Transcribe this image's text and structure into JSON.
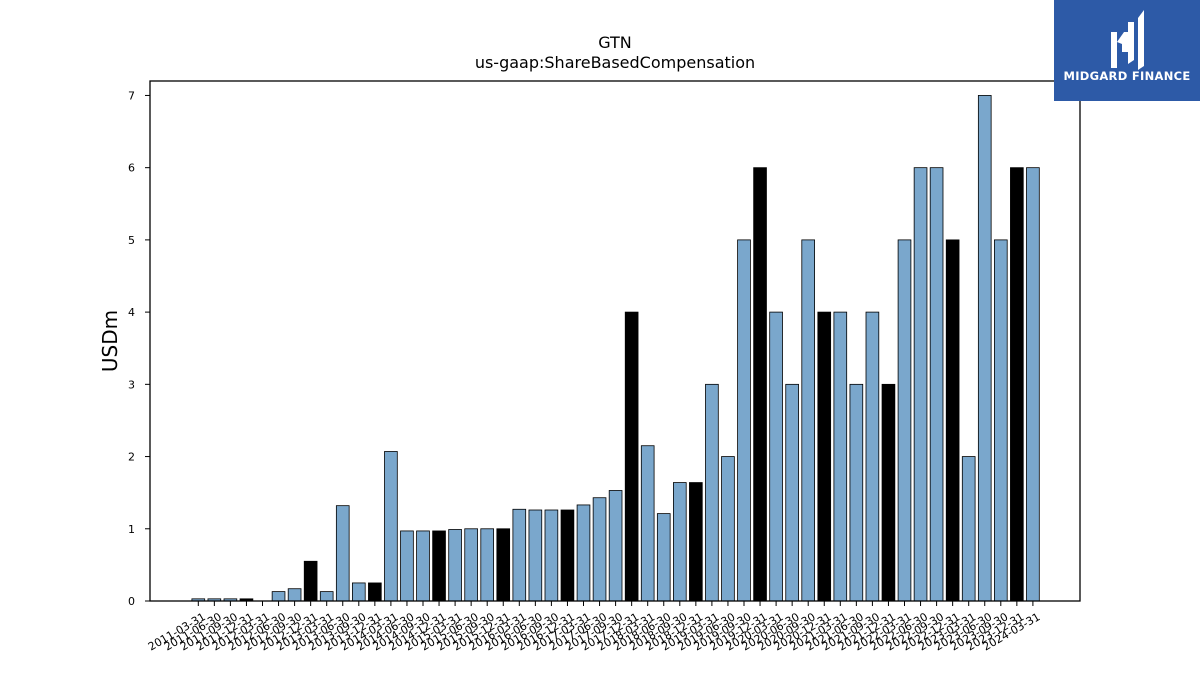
{
  "chart_data": {
    "type": "bar",
    "title": "GTN",
    "subtitle": "us-gaap:ShareBasedCompensation",
    "xlabel": "",
    "ylabel": "USDm",
    "ylim": [
      0,
      7.2
    ],
    "yticks": [
      0,
      1,
      2,
      3,
      4,
      5,
      6,
      7
    ],
    "grid": false,
    "colors": {
      "quarter": "#7aa7cc",
      "year_end": "#000000",
      "edge": "#000000"
    },
    "categories": [
      "2011-03-31",
      "2011-06-30",
      "2011-09-30",
      "2011-12-31",
      "2012-03-31",
      "2012-06-30",
      "2012-09-30",
      "2012-12-31",
      "2013-03-31",
      "2013-06-30",
      "2013-09-30",
      "2013-12-31",
      "2014-03-31",
      "2014-06-30",
      "2014-09-30",
      "2014-12-31",
      "2015-03-31",
      "2015-06-30",
      "2015-09-30",
      "2015-12-31",
      "2016-03-31",
      "2016-06-30",
      "2016-09-30",
      "2016-12-31",
      "2017-03-31",
      "2017-06-30",
      "2017-09-30",
      "2017-12-31",
      "2018-03-31",
      "2018-06-30",
      "2018-09-30",
      "2018-12-31",
      "2019-03-31",
      "2019-06-30",
      "2019-09-30",
      "2019-12-31",
      "2020-03-31",
      "2020-06-30",
      "2020-09-30",
      "2020-12-31",
      "2021-03-31",
      "2021-06-30",
      "2021-09-30",
      "2021-12-31",
      "2022-03-31",
      "2022-06-30",
      "2022-09-30",
      "2022-12-31",
      "2023-03-31",
      "2023-06-30",
      "2023-09-30",
      "2023-12-31",
      "2024-03-31"
    ],
    "values": [
      0.03,
      0.03,
      0.03,
      0.03,
      0.0,
      0.13,
      0.17,
      0.55,
      0.13,
      1.32,
      0.25,
      0.25,
      2.07,
      0.97,
      0.97,
      0.97,
      0.99,
      1.0,
      1.0,
      1.0,
      1.27,
      1.26,
      1.26,
      1.26,
      1.33,
      1.43,
      1.53,
      4.0,
      2.15,
      1.21,
      1.64,
      1.64,
      3.0,
      2.0,
      5.0,
      6.0,
      4.0,
      3.0,
      5.0,
      4.0,
      4.0,
      3.0,
      4.0,
      3.0,
      5.0,
      6.0,
      6.0,
      5.0,
      2.0,
      7.0,
      5.0,
      6.0,
      6.0
    ],
    "year_end": [
      false,
      false,
      false,
      true,
      false,
      false,
      false,
      true,
      false,
      false,
      false,
      true,
      false,
      false,
      false,
      true,
      false,
      false,
      false,
      true,
      false,
      false,
      false,
      true,
      false,
      false,
      false,
      true,
      false,
      false,
      false,
      true,
      false,
      false,
      false,
      true,
      false,
      false,
      false,
      true,
      false,
      false,
      false,
      true,
      false,
      false,
      false,
      true,
      false,
      false,
      false,
      true,
      false
    ]
  },
  "logo": {
    "text": "MIDGARD FINANCE",
    "color": "#2d5aa7"
  }
}
